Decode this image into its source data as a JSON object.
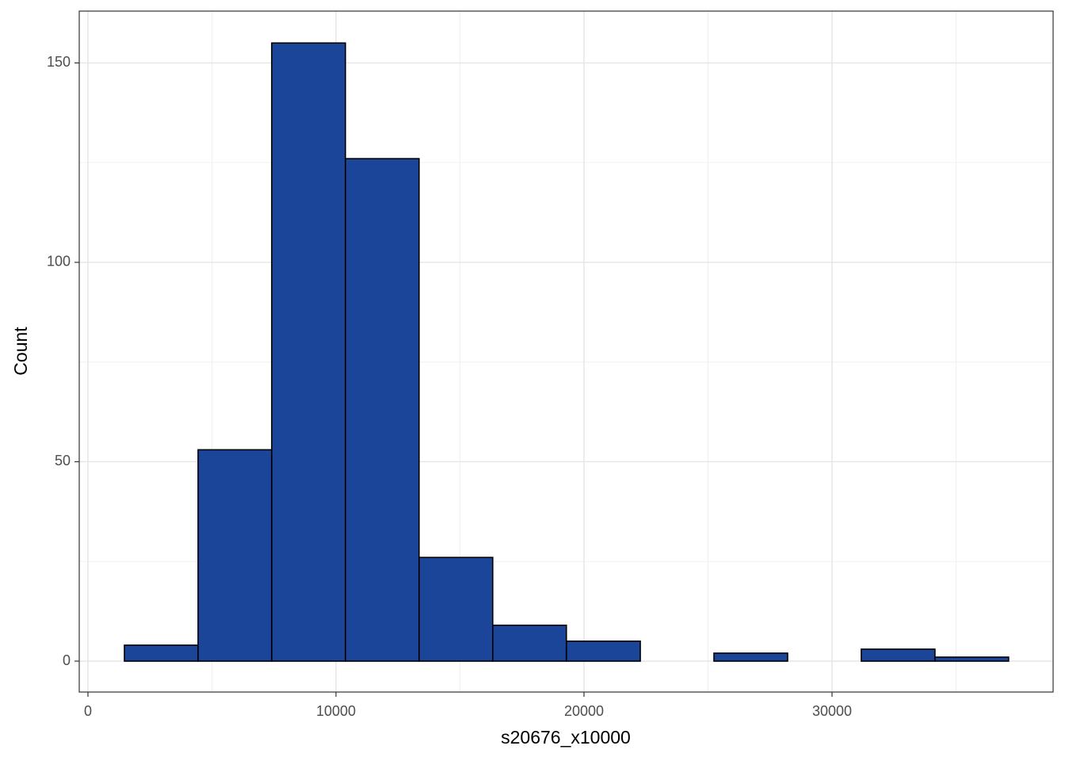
{
  "chart_data": {
    "type": "histogram",
    "x_label": "s20676_x10000",
    "y_label": "Count",
    "bins": [
      1470,
      4440,
      7410,
      10380,
      13350,
      16320,
      19290,
      22270,
      25240,
      28210,
      31180,
      34150,
      37120
    ],
    "counts": [
      4,
      53,
      155,
      126,
      26,
      9,
      5,
      0,
      2,
      0,
      3,
      1
    ],
    "color": "#1a4599",
    "edge_color": "#000000",
    "xlim": [
      -351,
      38914
    ],
    "ylim": [
      -7.75,
      163
    ],
    "xticks": [
      0,
      10000,
      20000,
      30000
    ],
    "yticks": [
      0,
      50,
      100,
      150
    ],
    "x_minor_ticks": [
      5000,
      15000,
      25000,
      35000
    ],
    "y_minor_ticks": [
      25,
      75,
      125
    ],
    "grid": true
  }
}
